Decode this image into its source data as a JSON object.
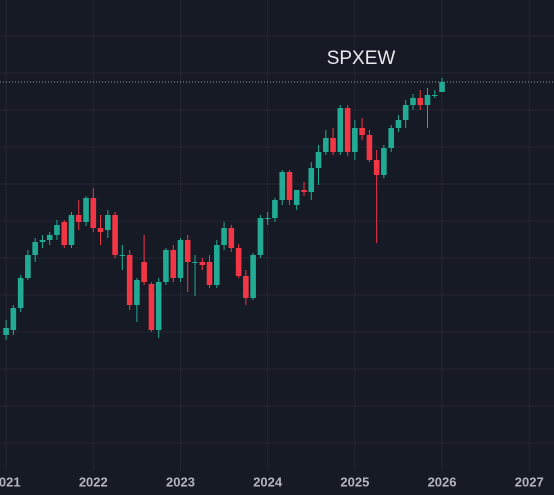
{
  "chart_data": {
    "type": "candlestick",
    "title": "SPXEW",
    "x": [
      2021,
      2021.083,
      2021.167,
      2021.25,
      2021.333,
      2021.417,
      2021.5,
      2021.583,
      2021.667,
      2021.75,
      2021.833,
      2021.917,
      2022,
      2022.083,
      2022.167,
      2022.25,
      2022.333,
      2022.417,
      2022.5,
      2022.583,
      2022.667,
      2022.75,
      2022.833,
      2022.917,
      2023,
      2023.083,
      2023.167,
      2023.25,
      2023.333,
      2023.417,
      2023.5,
      2023.583,
      2023.667,
      2023.75,
      2023.833,
      2023.917,
      2024,
      2024.083,
      2024.167,
      2024.25,
      2024.333,
      2024.417,
      2024.5,
      2024.583,
      2024.667,
      2024.75,
      2024.833,
      2024.917,
      2025,
      2025.083,
      2025.167,
      2025.25,
      2025.333,
      2025.417,
      2025.5,
      2025.583,
      2025.667,
      2025.75,
      2025.833,
      2025.917,
      2026
    ],
    "open": [
      135,
      140,
      162,
      192,
      215,
      228,
      230,
      235,
      248,
      225,
      255,
      248,
      272,
      242,
      240,
      255,
      215,
      215,
      165,
      208,
      186,
      140,
      188,
      220,
      192,
      230,
      208,
      208,
      208,
      185,
      225,
      242,
      222,
      194,
      172,
      215,
      252,
      252,
      270,
      298,
      265,
      280,
      278,
      302,
      318,
      332,
      318,
      362,
      318,
      342,
      335,
      310,
      295,
      322,
      342,
      350,
      365,
      372,
      365,
      375,
      378
    ],
    "high": [
      150,
      165,
      195,
      220,
      232,
      235,
      238,
      250,
      250,
      258,
      270,
      274,
      282,
      255,
      260,
      258,
      225,
      220,
      192,
      235,
      188,
      192,
      222,
      225,
      232,
      235,
      215,
      212,
      215,
      230,
      248,
      245,
      226,
      200,
      217,
      255,
      258,
      272,
      300,
      300,
      280,
      288,
      308,
      325,
      340,
      342,
      365,
      365,
      350,
      352,
      340,
      320,
      325,
      345,
      355,
      370,
      376,
      380,
      382,
      380,
      392
    ],
    "low": [
      130,
      135,
      158,
      190,
      208,
      222,
      225,
      230,
      222,
      222,
      240,
      244,
      238,
      225,
      232,
      212,
      200,
      160,
      148,
      185,
      138,
      132,
      185,
      188,
      188,
      178,
      174,
      200,
      182,
      182,
      220,
      218,
      192,
      165,
      170,
      212,
      245,
      248,
      265,
      265,
      260,
      274,
      270,
      285,
      315,
      315,
      315,
      314,
      310,
      330,
      308,
      227,
      292,
      318,
      338,
      342,
      360,
      360,
      342,
      372,
      378
    ],
    "close": [
      142,
      162,
      192,
      215,
      228,
      230,
      235,
      245,
      225,
      255,
      248,
      272,
      242,
      238,
      255,
      215,
      215,
      165,
      190,
      188,
      140,
      188,
      220,
      192,
      230,
      208,
      208,
      205,
      185,
      225,
      242,
      222,
      194,
      172,
      215,
      252,
      252,
      270,
      298,
      270,
      280,
      278,
      302,
      318,
      332,
      318,
      362,
      318,
      342,
      335,
      310,
      295,
      322,
      342,
      350,
      365,
      372,
      365,
      375,
      375,
      388
    ],
    "up_color": "#22ab94",
    "down_color": "#f23645",
    "xlim": [
      2020.93,
      2027.284
    ],
    "xticks": [
      2021,
      2022,
      2023,
      2024,
      2025,
      2026,
      2027
    ],
    "ylim": [
      0,
      470
    ],
    "grid": true
  }
}
